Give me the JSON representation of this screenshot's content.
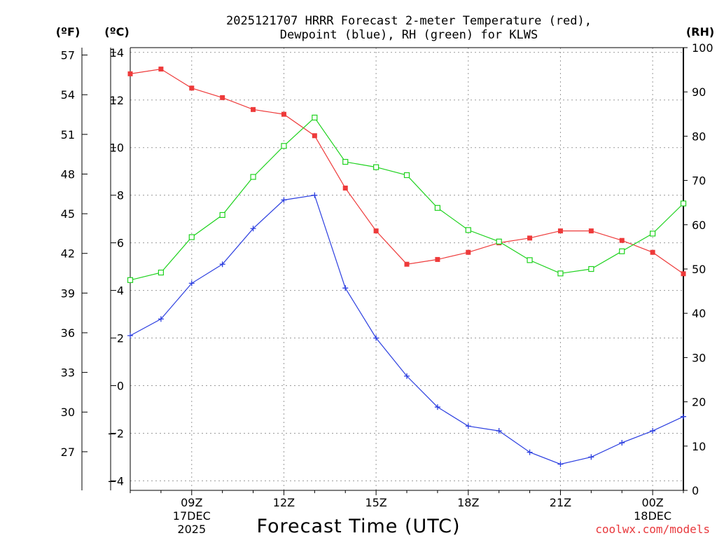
{
  "chart_data": {
    "type": "line",
    "title_line1": "2025121707 HRRR Forecast 2-meter Temperature (red),",
    "title_line2": "Dewpoint (blue), RH (green) for KLWS",
    "xlabel": "Forecast Time (UTC)",
    "credit": "coolwx.com/models",
    "unit_labels": {
      "fahrenheit": "(ºF)",
      "celsius": "(ºC)",
      "rh": "(RH)"
    },
    "x_hours": [
      7,
      8,
      9,
      10,
      11,
      12,
      13,
      14,
      15,
      16,
      17,
      18,
      19,
      20,
      21,
      22,
      23,
      24,
      25
    ],
    "xlim": [
      7,
      25
    ],
    "x_ticks": [
      {
        "hour": 9,
        "label": "09Z",
        "date": "17DEC",
        "year": "2025"
      },
      {
        "hour": 12,
        "label": "12Z",
        "date": "",
        "year": ""
      },
      {
        "hour": 15,
        "label": "15Z",
        "date": "",
        "year": ""
      },
      {
        "hour": 18,
        "label": "18Z",
        "date": "",
        "year": ""
      },
      {
        "hour": 21,
        "label": "21Z",
        "date": "",
        "year": ""
      },
      {
        "hour": 24,
        "label": "00Z",
        "date": "18DEC",
        "year": ""
      }
    ],
    "celsius_axis": {
      "range": [
        -4.4,
        14.2
      ],
      "ticks": [
        "14",
        "12",
        "10",
        "8",
        "6",
        "4",
        "2",
        "0",
        "−2",
        "−4"
      ],
      "values": [
        14,
        12,
        10,
        8,
        6,
        4,
        2,
        0,
        -2,
        -4
      ]
    },
    "fahrenheit_axis": {
      "ticks": [
        "57",
        "54",
        "51",
        "48",
        "45",
        "42",
        "39",
        "36",
        "33",
        "30",
        "27"
      ],
      "values": [
        57,
        54,
        51,
        48,
        45,
        42,
        39,
        36,
        33,
        30,
        27
      ]
    },
    "rh_axis": {
      "range": [
        0,
        100
      ],
      "ticks": [
        "100",
        "90",
        "80",
        "70",
        "60",
        "50",
        "40",
        "30",
        "20",
        "10",
        "0"
      ],
      "values": [
        100,
        90,
        80,
        70,
        60,
        50,
        40,
        30,
        20,
        10,
        0
      ]
    },
    "series": [
      {
        "name": "Temperature",
        "axis": "celsius",
        "color": "#ee3a3a",
        "marker": "filled-square",
        "values": [
          13.1,
          13.3,
          12.5,
          12.1,
          11.6,
          11.4,
          10.5,
          8.3,
          6.5,
          5.1,
          5.3,
          5.6,
          6.0,
          6.2,
          6.5,
          6.5,
          6.1,
          5.6,
          4.7
        ]
      },
      {
        "name": "Dewpoint",
        "axis": "celsius",
        "color": "#2c3fe0",
        "marker": "plus",
        "values": [
          2.1,
          2.8,
          4.3,
          5.1,
          6.6,
          7.8,
          8.0,
          4.1,
          2.0,
          0.4,
          -0.9,
          -1.7,
          -1.9,
          -2.8,
          -3.3,
          -3.0,
          -2.4,
          -1.9,
          -1.3
        ]
      },
      {
        "name": "RH",
        "axis": "rh",
        "color": "#1ed21e",
        "marker": "open-square",
        "values": [
          47.5,
          49.2,
          57.2,
          62.2,
          70.8,
          77.8,
          84.2,
          74.2,
          73.0,
          71.2,
          63.8,
          58.8,
          56.2,
          52.0,
          49.0,
          50.0,
          54.0,
          58.0,
          64.8
        ]
      }
    ]
  }
}
